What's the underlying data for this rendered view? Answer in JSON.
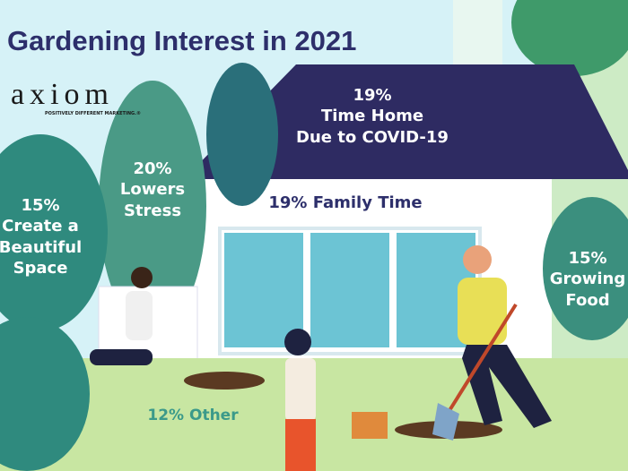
{
  "title": "Gardening Interest in 2021",
  "logo": {
    "word": "axiom",
    "tagline": "POSITIVELY DIFFERENT MARKETING.®"
  },
  "labels": {
    "time_home": {
      "pct": "19%",
      "l1": "Time Home",
      "l2": "Due to COVID-19"
    },
    "family": "19% Family Time",
    "stress": {
      "pct": "20%",
      "l1": "Lowers",
      "l2": "Stress"
    },
    "beautiful": {
      "pct": "15%",
      "l1": "Create a",
      "l2": "Beautiful",
      "l3": "Space"
    },
    "food": {
      "pct": "15%",
      "l1": "Growing",
      "l2": "Food"
    },
    "other": "12% Other"
  },
  "colors": {
    "sky": "#d6f2f7",
    "roof": "#2e2b62",
    "wall": "#ffffff",
    "window": "#6cc4d4",
    "grass": "#c8e6a2",
    "bush": "#2f8a7e",
    "title": "#2d2f6b"
  }
}
